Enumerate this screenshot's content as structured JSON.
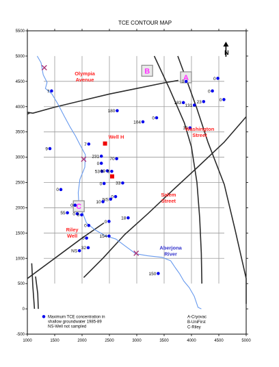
{
  "title": "TCE CONTOUR MAP",
  "north_label": "N",
  "axes": {
    "x_range": [
      1000,
      5000
    ],
    "y_range": [
      -500,
      5500
    ],
    "x_ticks": [
      "1000",
      "1500",
      "2000",
      "2500",
      "3000",
      "3500",
      "4000",
      "4500",
      "5000"
    ],
    "y_ticks": [
      "-500",
      "0",
      "500",
      "1000",
      "1500",
      "2000",
      "2500",
      "3000",
      "3500",
      "4000",
      "4500",
      "5000",
      "5500"
    ]
  },
  "places": [
    {
      "key": "olympia",
      "lines": [
        "Olympia",
        "Avenue"
      ],
      "x": 2050,
      "y": 4620
    },
    {
      "key": "washington",
      "lines": [
        "Washington",
        "Street"
      ],
      "x": 4150,
      "y": 3520
    },
    {
      "key": "salem",
      "lines": [
        "Salem",
        "Street"
      ],
      "x": 3580,
      "y": 2220
    },
    {
      "key": "riley",
      "lines": [
        "Riley",
        "Well"
      ],
      "x": 1820,
      "y": 1530
    }
  ],
  "rivers": [
    {
      "key": "aberjona",
      "lines": [
        "Aberjona",
        "River"
      ],
      "x": 3620,
      "y": 1170
    }
  ],
  "wells": [
    {
      "key": "well-h",
      "label": "Well H",
      "x": 2420,
      "y": 3270
    }
  ],
  "site_boxes": [
    {
      "letter": "A",
      "x": 3900,
      "y": 4580,
      "color": "#ff33ff"
    },
    {
      "letter": "B",
      "x": 3190,
      "y": 4710,
      "color": "#ff33ff"
    },
    {
      "letter": "C",
      "x": 1940,
      "y": 2030,
      "color": "#ff33ff"
    }
  ],
  "samples": [
    {
      "label": "7",
      "x": 1430,
      "y": 4310
    },
    {
      "label": "0",
      "x": 3890,
      "y": 4500
    },
    {
      "label": "0",
      "x": 4470,
      "y": 4560
    },
    {
      "label": "0",
      "x": 4370,
      "y": 4310
    },
    {
      "label": "0",
      "x": 4580,
      "y": 4140
    },
    {
      "label": "183",
      "x": 3840,
      "y": 4080
    },
    {
      "label": "23",
      "x": 4210,
      "y": 4100
    },
    {
      "label": "131",
      "x": 4040,
      "y": 4030
    },
    {
      "label": "180",
      "x": 2630,
      "y": 3920
    },
    {
      "label": "0",
      "x": 3350,
      "y": 3780
    },
    {
      "label": "104",
      "x": 3100,
      "y": 3700
    },
    {
      "label": "35",
      "x": 3960,
      "y": 3580
    },
    {
      "label": "7",
      "x": 2110,
      "y": 3260
    },
    {
      "label": "9",
      "x": 1400,
      "y": 3170
    },
    {
      "label": "231",
      "x": 2340,
      "y": 3020
    },
    {
      "label": "70",
      "x": 2620,
      "y": 2970
    },
    {
      "label": "0",
      "x": 2340,
      "y": 2880
    },
    {
      "label": "53",
      "x": 2350,
      "y": 2720
    },
    {
      "label": "69",
      "x": 2450,
      "y": 2730
    },
    {
      "label": "5",
      "x": 2530,
      "y": 2720
    },
    {
      "label": "0",
      "x": 2390,
      "y": 2480
    },
    {
      "label": "33",
      "x": 2730,
      "y": 2490
    },
    {
      "label": "0",
      "x": 1600,
      "y": 2360
    },
    {
      "label": "0",
      "x": 2600,
      "y": 2220
    },
    {
      "label": "NS",
      "x": 2510,
      "y": 2170
    },
    {
      "label": "10",
      "x": 2370,
      "y": 2120
    },
    {
      "label": "0",
      "x": 1860,
      "y": 2050
    },
    {
      "label": "55",
      "x": 1720,
      "y": 1900
    },
    {
      "label": "0",
      "x": 1900,
      "y": 1880
    },
    {
      "label": "0",
      "x": 1980,
      "y": 1860
    },
    {
      "label": "0",
      "x": 2480,
      "y": 1730
    },
    {
      "label": "18",
      "x": 2830,
      "y": 1800
    },
    {
      "label": "0",
      "x": 2110,
      "y": 1650
    },
    {
      "label": "154",
      "x": 2480,
      "y": 1440
    },
    {
      "label": "0",
      "x": 2070,
      "y": 1400
    },
    {
      "label": "32",
      "x": 2100,
      "y": 1210
    },
    {
      "label": "NS",
      "x": 1940,
      "y": 1150
    },
    {
      "label": "150",
      "x": 3380,
      "y": 700
    }
  ],
  "x_marks": [
    {
      "x": 1310,
      "y": 4770
    },
    {
      "x": 2030,
      "y": 2960
    },
    {
      "x": 2990,
      "y": 1100
    }
  ],
  "legend": {
    "text_lines": [
      "Maximum TCE concentration in",
      "shallow groundwater 1985-89",
      "NS-Well not sampled"
    ],
    "sites": [
      "A-Cryovac",
      "B-UniFirst",
      "C-Riley"
    ]
  },
  "colors": {
    "grid": "#9a9a9a",
    "road": "#2a2a2a",
    "river": "#6699ee",
    "dot": "#0000ee",
    "place": "#ff2020",
    "river_label": "#3333cc",
    "well_square": "#ee0000",
    "x_mark": "#aa3377"
  }
}
